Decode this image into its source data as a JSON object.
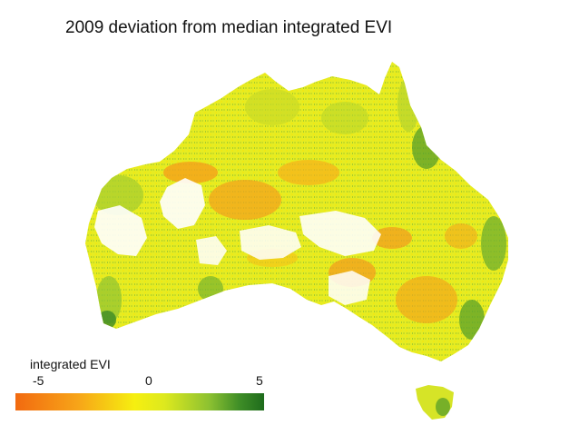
{
  "title": "2009 deviation from median integrated EVI",
  "legend": {
    "title": "integrated EVI",
    "ticks": [
      "-5",
      "0",
      "5"
    ],
    "colors": {
      "low": "#f26a10",
      "mid_low": "#f7a418",
      "zero": "#f6ef10",
      "mid_high": "#8cc131",
      "high": "#1e6b1c"
    }
  },
  "map": {
    "region": "Australia",
    "no_data_color": "#ffffff"
  }
}
